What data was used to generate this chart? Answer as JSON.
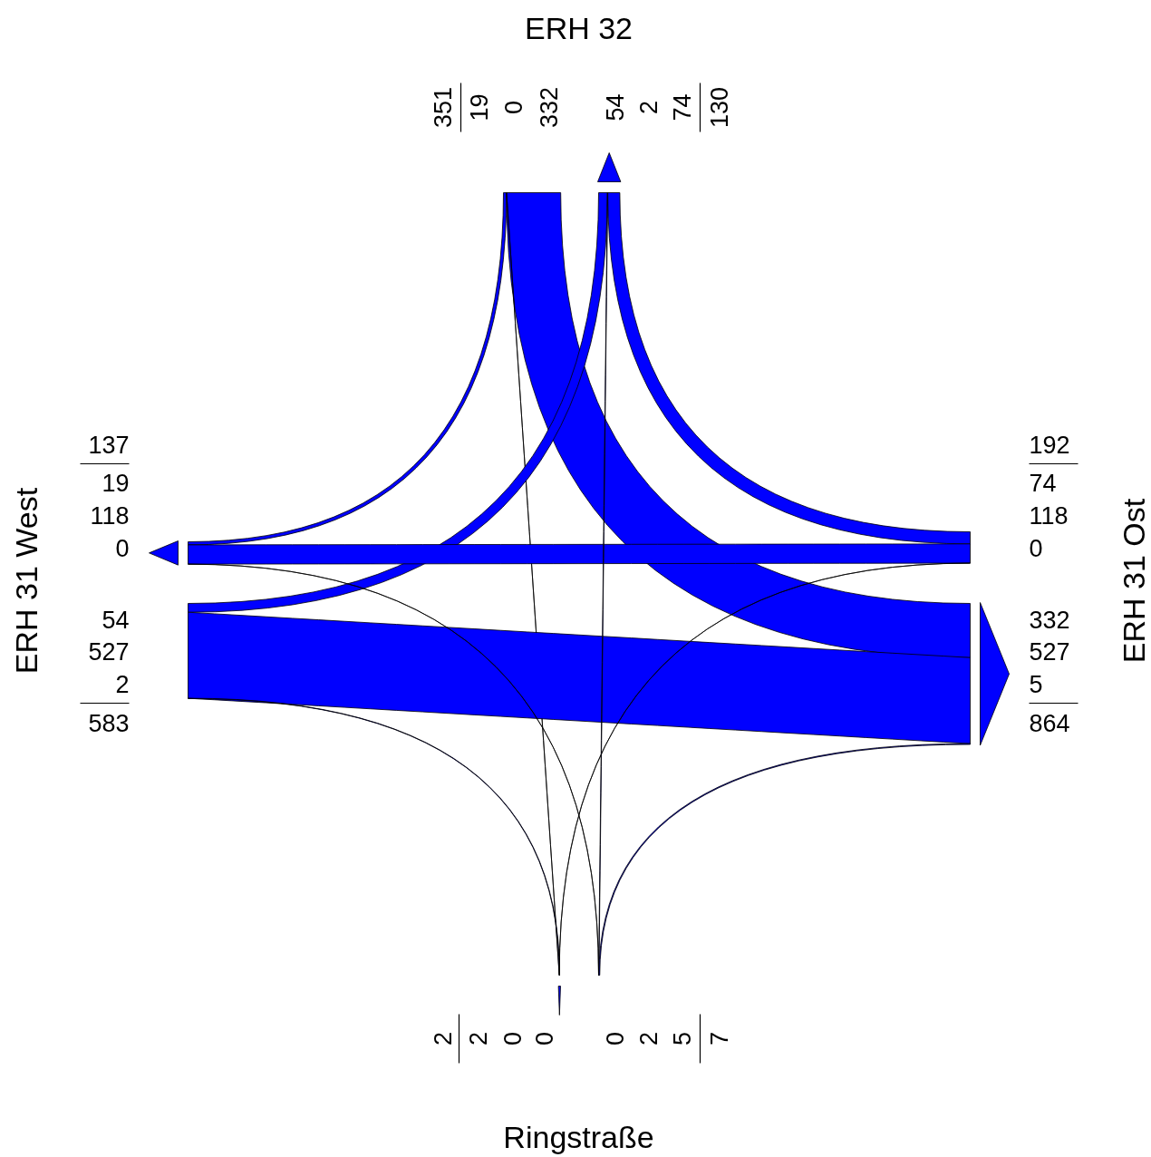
{
  "chart_data": {
    "type": "other",
    "categories": [
      "ERH 32",
      "ERH 31 West",
      "ERH 31 Ost",
      "Ringstraße"
    ],
    "series": [
      {
        "color": "#0000ff",
        "values": [
          null,
          19,
          332,
          0
        ]
      },
      {
        "color": "#0000ff",
        "values": [
          54,
          null,
          527,
          2
        ]
      },
      {
        "color": "#0000ff",
        "values": [
          74,
          118,
          null,
          0
        ]
      },
      {
        "color": "#0000ff",
        "values": [
          2,
          0,
          5,
          null
        ]
      }
    ],
    "data_labels": true,
    "annotations": [
      "19",
      "0",
      "332",
      "54",
      "527",
      "2",
      "74",
      "118",
      "0",
      "0",
      "2",
      "5"
    ],
    "totals": [
      [
        "351",
        "130"
      ],
      [
        "583",
        "137"
      ],
      [
        "192",
        "864"
      ],
      [
        "7",
        "2"
      ]
    ]
  }
}
